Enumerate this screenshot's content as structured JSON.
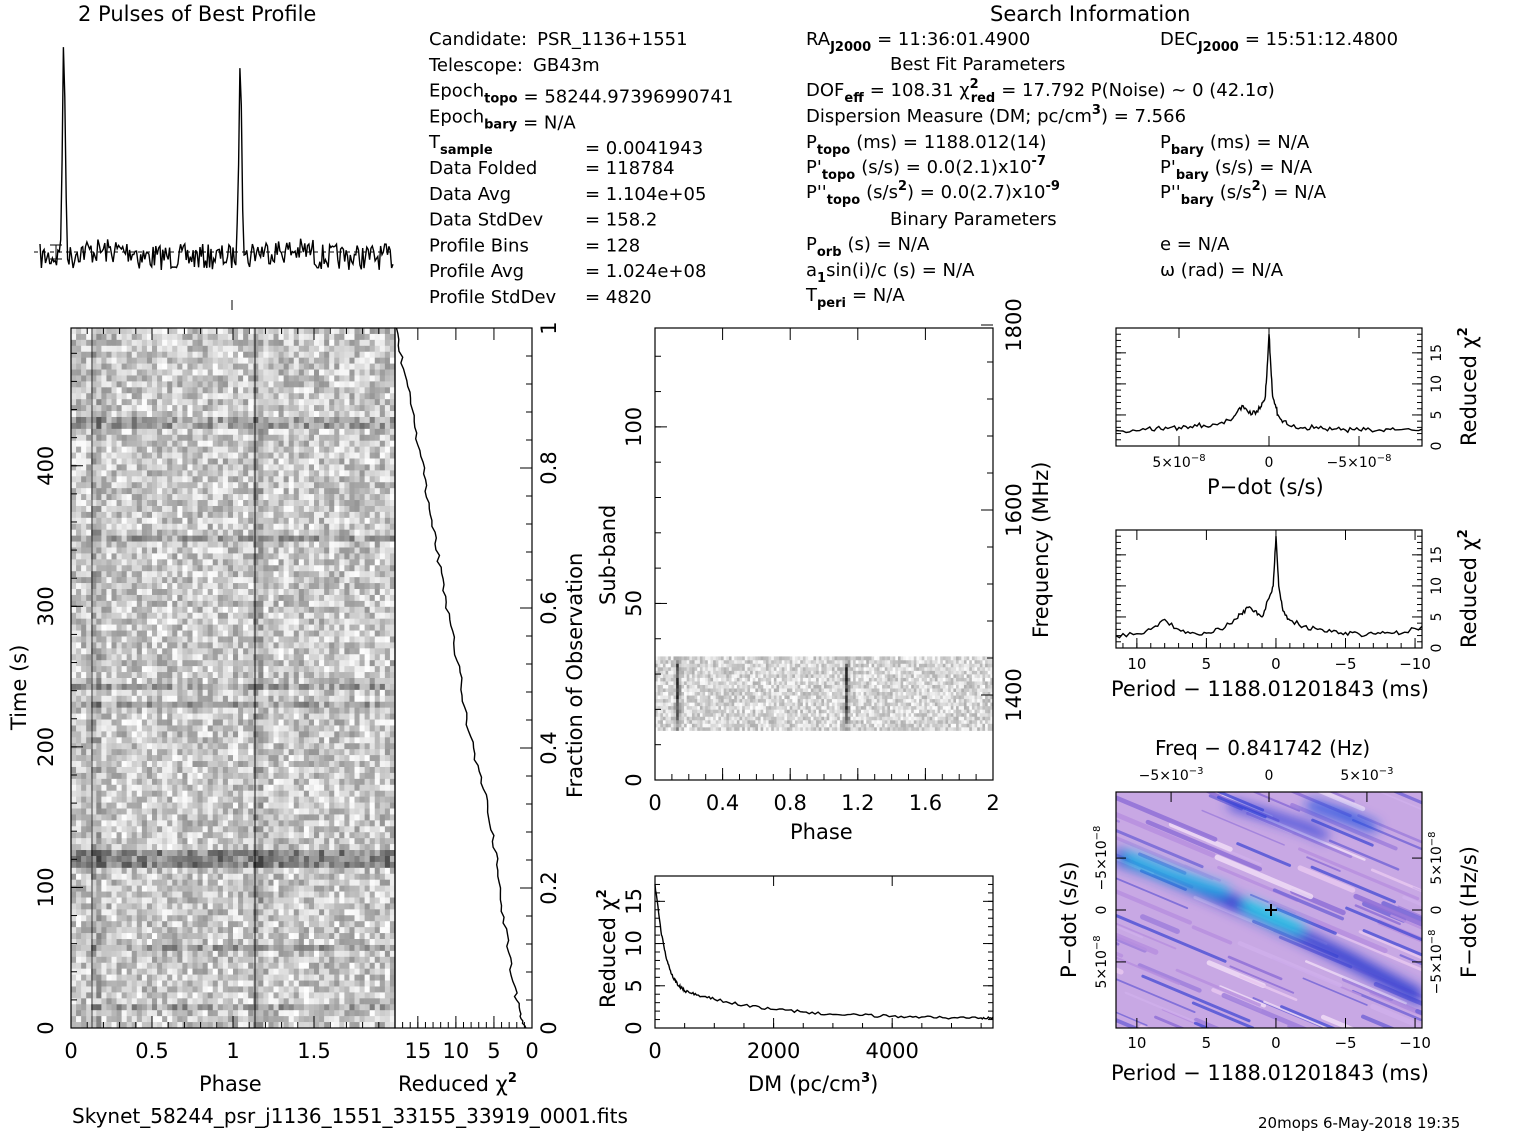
{
  "header": {
    "profile_title": "2 Pulses of Best Profile",
    "search_title": "Search Information",
    "best_fit_title": "Best Fit Parameters",
    "binary_title": "Binary Parameters",
    "filename": "Skynet_58244_psr_j1136_1551_33155_33919_0001.fits",
    "footer_user_date": "20mops   6-May-2018 19:35"
  },
  "info_left": [
    {
      "label": "Candidate:",
      "value": "PSR_1136+1551"
    },
    {
      "label": "Telescope:",
      "value": "GB43m"
    },
    {
      "label": "Epoch",
      "sub": "topo",
      "value": "= 58244.97396990741"
    },
    {
      "label": "Epoch",
      "sub": "bary",
      "value": "= N/A"
    },
    {
      "label": "T",
      "sub": "sample",
      "value": "=   0.0041943"
    },
    {
      "label": "Data Folded",
      "value": "=   118784"
    },
    {
      "label": "Data Avg",
      "value": "=   1.104e+05"
    },
    {
      "label": "Data StdDev",
      "value": "=   158.2"
    },
    {
      "label": "Profile Bins",
      "value": "=   128"
    },
    {
      "label": "Profile Avg",
      "value": "=   1.024e+08"
    },
    {
      "label": "Profile StdDev",
      "value": "=   4820"
    }
  ],
  "info_mid": {
    "ra": {
      "label": "RA",
      "sub": "J2000",
      "value": "= 11:36:01.4900"
    },
    "dec": {
      "label": "DEC",
      "sub": "J2000",
      "value": "= 15:51:12.4800"
    },
    "dof_line": "DOF",
    "dof_sub": "eff",
    "dof_value": "= 108.31   χ",
    "chi_sub": "red",
    "chi_value": "= 17.792   P(Noise) ~ 0    (42.1σ)",
    "dm_line": "Dispersion Measure (DM; pc/cm",
    "dm_value": ") = 7.566",
    "ptopo": {
      "label": "P",
      "sub": "topo",
      "value": "(ms) =   1188.012(14)"
    },
    "pdtopo": {
      "label": "P'",
      "sub": "topo",
      "value": "(s/s) = 0.0(2.1)x10"
    },
    "pdtopo_exp": "-7",
    "pddtopo": {
      "label": "P''",
      "sub": "topo",
      "value": "(s/s",
      "tail": ") = 0.0(2.7)x10"
    },
    "pddtopo_exp": "-9",
    "porb": {
      "label": "P",
      "sub": "orb",
      "value": "(s) = N/A"
    },
    "asini": {
      "label": "a",
      "sub": "1",
      "value": "sin(i)/c (s) = N/A"
    },
    "tperi": {
      "label": "T",
      "sub": "peri",
      "value": "= N/A"
    }
  },
  "info_right": {
    "pbary": {
      "label": "P",
      "sub": "bary",
      "value": "(ms) = N/A"
    },
    "pdbary": {
      "label": "P'",
      "sub": "bary",
      "value": "(s/s) = N/A"
    },
    "pddbary": {
      "label": "P''",
      "sub": "bary",
      "value": "(s/s",
      "tail": ") = N/A"
    },
    "ecc": "e = N/A",
    "omega": "ω (rad) = N/A"
  },
  "chart_data": [
    {
      "type": "line",
      "name": "profile",
      "title": "2 Pulses of Best Profile",
      "x_range": [
        0,
        2
      ],
      "peaks_at_phase": [
        0.13,
        1.13
      ]
    },
    {
      "type": "heatmap",
      "name": "time-phase",
      "xlabel": "Phase",
      "ylabel": "Time (s)",
      "xticks": [
        "0",
        "0.5",
        "1",
        "1.5"
      ],
      "yticks": [
        "0",
        "100",
        "200",
        "300",
        "400"
      ],
      "xlim": [
        0,
        2
      ],
      "ylim": [
        0,
        498
      ]
    },
    {
      "type": "line",
      "name": "reduced-chi2-vs-time",
      "xlabel": "Reduced χ",
      "right_label": "Fraction of Observation",
      "xticks": [
        "15",
        "10",
        "5",
        "0"
      ],
      "right_ticks": [
        "0",
        "0.2",
        "0.4",
        "0.6",
        "0.8",
        "1"
      ],
      "x_range": [
        0,
        18
      ],
      "fraction": [
        0,
        0.02,
        0.05,
        0.1,
        0.15,
        0.2,
        0.25,
        0.3,
        0.35,
        0.4,
        0.45,
        0.5,
        0.55,
        0.6,
        0.65,
        0.7,
        0.75,
        0.8,
        0.85,
        0.9,
        0.95,
        1.0
      ],
      "chi2": [
        0.8,
        1.5,
        2.2,
        3.0,
        3.6,
        4.2,
        4.8,
        5.5,
        6.5,
        7.8,
        8.7,
        9.4,
        10.3,
        11.2,
        12.0,
        12.8,
        13.6,
        14.3,
        15.2,
        16.0,
        17.0,
        17.8
      ]
    },
    {
      "type": "heatmap",
      "name": "subband-phase",
      "xlabel": "Phase",
      "ylabel": "Sub-band",
      "right_label": "Frequency (MHz)",
      "xticks": [
        "0",
        "0.4",
        "0.8",
        "1.2",
        "1.6",
        "2"
      ],
      "yticks": [
        "0",
        "50",
        "100"
      ],
      "right_ticks": [
        "1400",
        "1600",
        "1800"
      ],
      "xlim": [
        0,
        2
      ],
      "ylim": [
        0,
        128
      ],
      "active_subbands": [
        14,
        35
      ]
    },
    {
      "type": "line",
      "name": "dm-chi2",
      "xlabel": "DM (pc/cm",
      "ylabel": "Reduced χ",
      "xticks": [
        "0",
        "2000",
        "4000"
      ],
      "yticks": [
        "0",
        "5",
        "10",
        "15"
      ],
      "xlim": [
        0,
        5700
      ],
      "ylim": [
        0,
        18
      ],
      "x": [
        0,
        100,
        200,
        300,
        400,
        500,
        700,
        1000,
        1500,
        2000,
        2500,
        3000,
        3500,
        4000,
        4500,
        5000,
        5500,
        5700
      ],
      "y": [
        17.0,
        11.5,
        8.0,
        6.0,
        5.0,
        4.4,
        3.9,
        3.4,
        2.7,
        2.2,
        1.9,
        1.6,
        1.5,
        1.4,
        1.3,
        1.2,
        1.2,
        1.3
      ]
    },
    {
      "type": "line",
      "name": "pdot-chi2",
      "xlabel": "P−dot (s/s)",
      "ylabel": "Reduced χ",
      "xticks": [
        "5×10",
        "0",
        "−5×10"
      ],
      "xticks_exp": "−8",
      "yticks": [
        "0",
        "5",
        "10",
        "15"
      ],
      "xlim": [
        8.5,
        -8.5
      ],
      "ylim": [
        0,
        19
      ],
      "x": [
        8.5,
        7,
        6,
        5,
        4,
        3,
        2,
        1.5,
        1,
        0.5,
        0.2,
        0,
        -0.2,
        -0.5,
        -1,
        -2,
        -3,
        -4,
        -5,
        -6,
        -7,
        -8.5
      ],
      "y": [
        2.5,
        2.8,
        2.7,
        3.0,
        3.2,
        3.5,
        4.5,
        6.5,
        5.0,
        6.0,
        8.0,
        18.0,
        8.0,
        5.0,
        3.5,
        3.0,
        2.8,
        2.6,
        2.6,
        2.5,
        2.6,
        2.7
      ]
    },
    {
      "type": "line",
      "name": "period-chi2",
      "xlabel": "Period − 1188.01201843 (ms)",
      "ylabel": "Reduced χ",
      "xticks": [
        "10",
        "5",
        "0",
        "−5",
        "−10"
      ],
      "yticks": [
        "0",
        "5",
        "10",
        "15"
      ],
      "xlim": [
        11.5,
        -10.5
      ],
      "ylim": [
        0,
        19
      ],
      "x": [
        11.5,
        10,
        9,
        8,
        7,
        6,
        5,
        4,
        3,
        2.5,
        2,
        1.5,
        1,
        0.5,
        0.2,
        0,
        -0.2,
        -0.5,
        -1,
        -2,
        -3,
        -4,
        -5,
        -6,
        -7,
        -8,
        -9,
        -10.5
      ],
      "y": [
        2.0,
        2.3,
        3.0,
        4.6,
        3.0,
        2.5,
        2.4,
        3.0,
        4.6,
        5.5,
        6.5,
        6.0,
        5.0,
        8.0,
        10.0,
        18.0,
        10.0,
        6.0,
        4.5,
        3.5,
        3.0,
        2.6,
        2.5,
        2.2,
        2.3,
        2.5,
        2.3,
        3.5
      ]
    },
    {
      "type": "heatmap",
      "name": "period-pdot",
      "title": "Freq − 0.841742 (Hz)",
      "xlabel": "Period − 1188.01201843 (ms)",
      "ylabel": "P−dot (s/s)",
      "right_label": "F−dot (Hz/s)",
      "xticks": [
        "10",
        "5",
        "0",
        "−5",
        "−10"
      ],
      "top_ticks": [
        "−5×10",
        "0",
        "5×10"
      ],
      "top_ticks_exp": "−3",
      "left_ticks": [
        "−5×10",
        "0",
        "5×10"
      ],
      "left_ticks_exp": "−8",
      "right_ticks": [
        "5×10",
        "0",
        "−5×10"
      ],
      "right_ticks_exp": "−8",
      "xlim": [
        11.5,
        -10.5
      ],
      "best": [
        0,
        0
      ]
    }
  ]
}
